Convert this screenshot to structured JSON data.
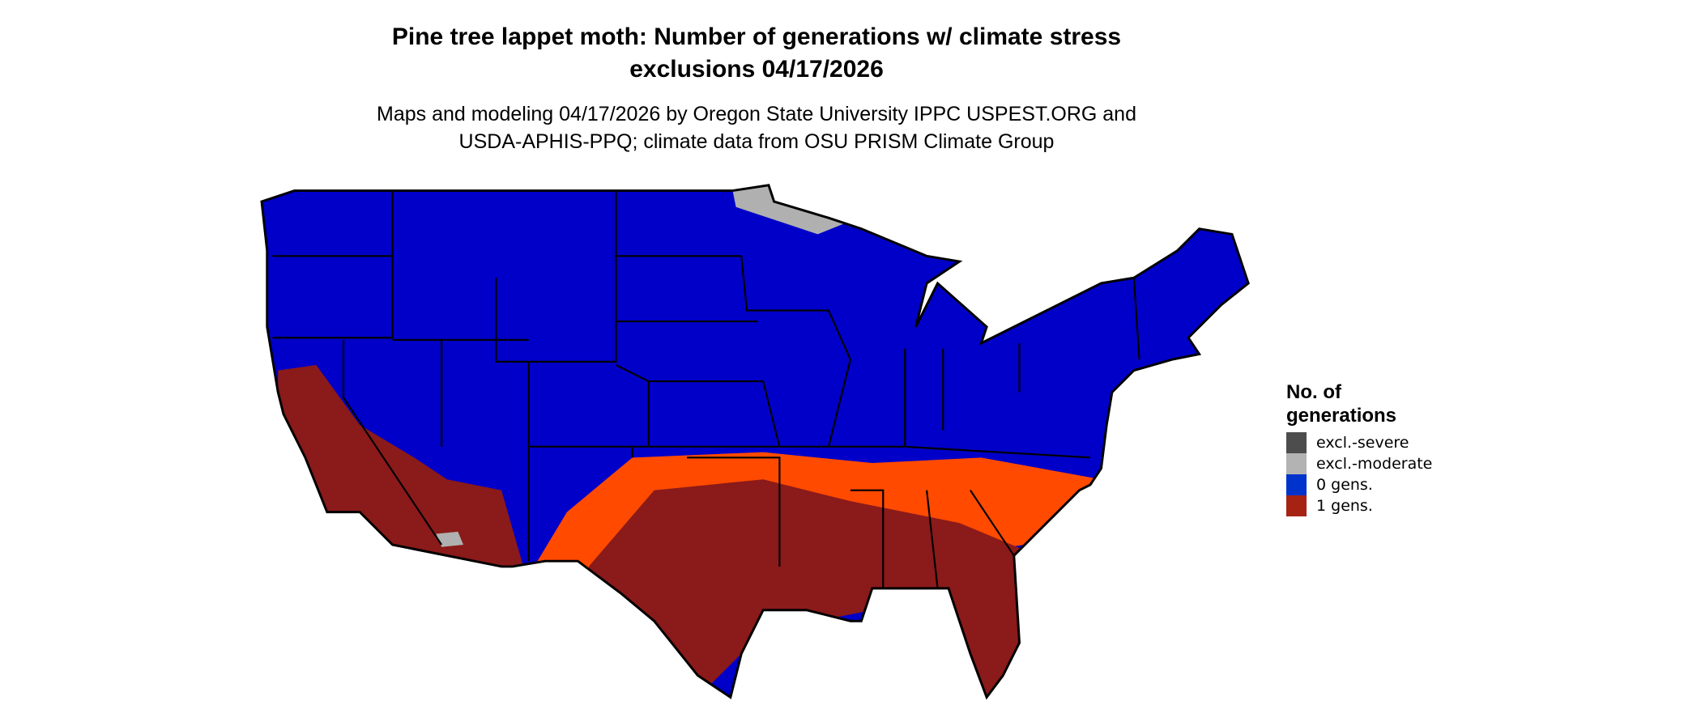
{
  "title": {
    "line1": "Pine tree lappet moth: Number of generations w/ climate stress",
    "line2": "exclusions 04/17/2026"
  },
  "subtitle": {
    "line1": "Maps and modeling 04/17/2026 by Oregon State University IPPC USPEST.ORG and",
    "line2": "USDA-APHIS-PPQ; climate data from OSU PRISM Climate Group"
  },
  "map": {
    "region": "Contiguous United States",
    "colors": {
      "zero_gens": "#0000c8",
      "one_gen_light": "#ff4a00",
      "one_gen_dark": "#8b1a1a",
      "excl_moderate": "#b0b0b0",
      "border": "#000000"
    }
  },
  "legend": {
    "title_line1": "No. of",
    "title_line2": "generations",
    "items": [
      {
        "label": "excl.-severe",
        "color": "#4d4d4d"
      },
      {
        "label": "excl.-moderate",
        "color": "#b3b3b3"
      },
      {
        "label": "0 gens.",
        "color": "#0033cc"
      },
      {
        "label": "1 gens.",
        "color": "#a62314"
      }
    ]
  }
}
